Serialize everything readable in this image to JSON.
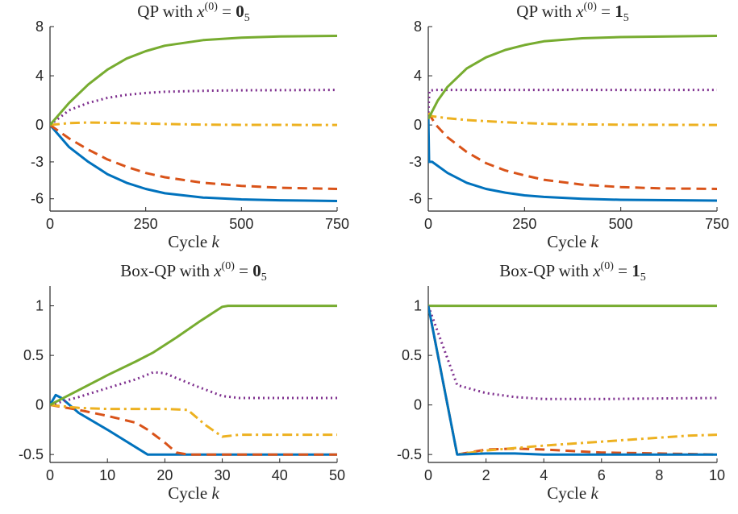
{
  "figure": {
    "colors": {
      "blue": "#0072bd",
      "orange": "#d95319",
      "yellow": "#edb120",
      "purple": "#7e2f8e",
      "green": "#77ac30",
      "axis": "#262626"
    }
  },
  "chart_data": [
    {
      "type": "line",
      "title": {
        "prefix": "QP with ",
        "var": "x",
        "sup": "(0)",
        "eq": " = ",
        "bold": "0",
        "sub": "5"
      },
      "xlabel": {
        "text": "Cycle ",
        "var": "k"
      },
      "xlim": [
        0,
        750
      ],
      "ylim": [
        -7,
        8
      ],
      "xticks": [
        0,
        250,
        500,
        750
      ],
      "yticks": [
        -6,
        -3,
        0,
        4,
        8
      ],
      "xtick_labels": [
        "0",
        "250",
        "500",
        "750"
      ],
      "ytick_labels": [
        "-6",
        "-3",
        "0",
        "4",
        "8"
      ],
      "grid": false,
      "series": [
        {
          "color": "#0072bd",
          "style": "solid",
          "points": [
            [
              0,
              0
            ],
            [
              50,
              -1.8
            ],
            [
              100,
              -3.0
            ],
            [
              150,
              -4.0
            ],
            [
              200,
              -4.7
            ],
            [
              250,
              -5.2
            ],
            [
              300,
              -5.55
            ],
            [
              400,
              -5.9
            ],
            [
              500,
              -6.05
            ],
            [
              600,
              -6.12
            ],
            [
              750,
              -6.18
            ]
          ]
        },
        {
          "color": "#d95319",
          "style": "dashed",
          "points": [
            [
              0,
              0
            ],
            [
              50,
              -1.1
            ],
            [
              100,
              -2.0
            ],
            [
              150,
              -2.8
            ],
            [
              200,
              -3.4
            ],
            [
              250,
              -3.9
            ],
            [
              300,
              -4.25
            ],
            [
              400,
              -4.7
            ],
            [
              500,
              -4.95
            ],
            [
              600,
              -5.1
            ],
            [
              750,
              -5.2
            ]
          ]
        },
        {
          "color": "#edb120",
          "style": "dashdot",
          "points": [
            [
              0,
              0
            ],
            [
              50,
              0.15
            ],
            [
              100,
              0.2
            ],
            [
              200,
              0.15
            ],
            [
              300,
              0.08
            ],
            [
              400,
              0.03
            ],
            [
              500,
              0.01
            ],
            [
              750,
              0.0
            ]
          ]
        },
        {
          "color": "#7e2f8e",
          "style": "dotted",
          "points": [
            [
              0,
              0
            ],
            [
              50,
              1.2
            ],
            [
              100,
              1.8
            ],
            [
              150,
              2.2
            ],
            [
              200,
              2.45
            ],
            [
              250,
              2.6
            ],
            [
              300,
              2.7
            ],
            [
              400,
              2.78
            ],
            [
              500,
              2.82
            ],
            [
              750,
              2.85
            ]
          ]
        },
        {
          "color": "#77ac30",
          "style": "solid",
          "points": [
            [
              0,
              0
            ],
            [
              50,
              1.8
            ],
            [
              100,
              3.3
            ],
            [
              150,
              4.5
            ],
            [
              200,
              5.4
            ],
            [
              250,
              6.0
            ],
            [
              300,
              6.45
            ],
            [
              400,
              6.9
            ],
            [
              500,
              7.1
            ],
            [
              600,
              7.2
            ],
            [
              750,
              7.25
            ]
          ]
        }
      ]
    },
    {
      "type": "line",
      "title": {
        "prefix": "QP with ",
        "var": "x",
        "sup": "(0)",
        "eq": " = ",
        "bold": "1",
        "sub": "5"
      },
      "xlabel": {
        "text": "Cycle ",
        "var": "k"
      },
      "xlim": [
        0,
        750
      ],
      "ylim": [
        -7,
        8
      ],
      "xticks": [
        0,
        250,
        500,
        750
      ],
      "yticks": [
        -6,
        -3,
        0,
        4,
        8
      ],
      "xtick_labels": [
        "0",
        "250",
        "500",
        "750"
      ],
      "ytick_labels": [
        "-6",
        "-3",
        "0",
        "4",
        "8"
      ],
      "grid": false,
      "series": [
        {
          "color": "#0072bd",
          "style": "solid",
          "points": [
            [
              0,
              1
            ],
            [
              2,
              -3.0
            ],
            [
              10,
              -3.0
            ],
            [
              50,
              -3.9
            ],
            [
              100,
              -4.7
            ],
            [
              150,
              -5.2
            ],
            [
              200,
              -5.5
            ],
            [
              250,
              -5.72
            ],
            [
              300,
              -5.85
            ],
            [
              400,
              -6.0
            ],
            [
              500,
              -6.08
            ],
            [
              750,
              -6.15
            ]
          ]
        },
        {
          "color": "#d95319",
          "style": "dashed",
          "points": [
            [
              0,
              1
            ],
            [
              20,
              0.0
            ],
            [
              50,
              -1.0
            ],
            [
              100,
              -2.2
            ],
            [
              150,
              -3.1
            ],
            [
              200,
              -3.7
            ],
            [
              250,
              -4.1
            ],
            [
              300,
              -4.45
            ],
            [
              400,
              -4.85
            ],
            [
              500,
              -5.05
            ],
            [
              600,
              -5.15
            ],
            [
              750,
              -5.2
            ]
          ]
        },
        {
          "color": "#edb120",
          "style": "dashdot",
          "points": [
            [
              0,
              1
            ],
            [
              10,
              0.7
            ],
            [
              50,
              0.55
            ],
            [
              100,
              0.4
            ],
            [
              200,
              0.22
            ],
            [
              300,
              0.1
            ],
            [
              400,
              0.05
            ],
            [
              500,
              0.02
            ],
            [
              750,
              0.0
            ]
          ]
        },
        {
          "color": "#7e2f8e",
          "style": "dotted",
          "points": [
            [
              0,
              1
            ],
            [
              3,
              2.8
            ],
            [
              20,
              2.85
            ],
            [
              100,
              2.85
            ],
            [
              300,
              2.85
            ],
            [
              750,
              2.85
            ]
          ]
        },
        {
          "color": "#77ac30",
          "style": "solid",
          "points": [
            [
              0,
              0.5
            ],
            [
              25,
              2.0
            ],
            [
              50,
              3.1
            ],
            [
              100,
              4.6
            ],
            [
              150,
              5.5
            ],
            [
              200,
              6.1
            ],
            [
              250,
              6.5
            ],
            [
              300,
              6.8
            ],
            [
              400,
              7.05
            ],
            [
              500,
              7.15
            ],
            [
              750,
              7.25
            ]
          ]
        }
      ]
    },
    {
      "type": "line",
      "title": {
        "prefix": "Box-QP with ",
        "var": "x",
        "sup": "(0)",
        "eq": " = ",
        "bold": "0",
        "sub": "5"
      },
      "xlabel": {
        "text": "Cycle ",
        "var": "k"
      },
      "xlim": [
        0,
        50
      ],
      "ylim": [
        -0.58,
        1.2
      ],
      "xticks": [
        0,
        10,
        20,
        30,
        40,
        50
      ],
      "yticks": [
        -0.5,
        0,
        0.5,
        1
      ],
      "xtick_labels": [
        "0",
        "10",
        "20",
        "30",
        "40",
        "50"
      ],
      "ytick_labels": [
        "-0.5",
        "0",
        "0.5",
        "1"
      ],
      "grid": false,
      "series": [
        {
          "color": "#0072bd",
          "style": "solid",
          "points": [
            [
              0,
              0
            ],
            [
              1,
              0.1
            ],
            [
              2,
              0.07
            ],
            [
              5,
              -0.08
            ],
            [
              10,
              -0.25
            ],
            [
              17,
              -0.5
            ],
            [
              20,
              -0.5
            ],
            [
              50,
              -0.5
            ]
          ]
        },
        {
          "color": "#d95319",
          "style": "dashed",
          "points": [
            [
              0,
              0
            ],
            [
              5,
              -0.05
            ],
            [
              10,
              -0.11
            ],
            [
              15,
              -0.18
            ],
            [
              17,
              -0.25
            ],
            [
              20,
              -0.38
            ],
            [
              22,
              -0.48
            ],
            [
              24,
              -0.5
            ],
            [
              50,
              -0.5
            ]
          ]
        },
        {
          "color": "#edb120",
          "style": "dashdot",
          "points": [
            [
              0,
              0
            ],
            [
              5,
              -0.03
            ],
            [
              10,
              -0.04
            ],
            [
              17,
              -0.04
            ],
            [
              20,
              -0.04
            ],
            [
              24,
              -0.05
            ],
            [
              27,
              -0.2
            ],
            [
              30,
              -0.32
            ],
            [
              33,
              -0.3
            ],
            [
              50,
              -0.3
            ]
          ]
        },
        {
          "color": "#7e2f8e",
          "style": "dotted",
          "points": [
            [
              0,
              0
            ],
            [
              5,
              0.08
            ],
            [
              10,
              0.17
            ],
            [
              15,
              0.26
            ],
            [
              18,
              0.33
            ],
            [
              20,
              0.32
            ],
            [
              25,
              0.2
            ],
            [
              30,
              0.09
            ],
            [
              33,
              0.07
            ],
            [
              50,
              0.07
            ]
          ]
        },
        {
          "color": "#77ac30",
          "style": "solid",
          "points": [
            [
              0,
              0
            ],
            [
              5,
              0.15
            ],
            [
              10,
              0.3
            ],
            [
              15,
              0.44
            ],
            [
              18,
              0.53
            ],
            [
              22,
              0.68
            ],
            [
              26,
              0.84
            ],
            [
              30,
              0.99
            ],
            [
              31,
              1.0
            ],
            [
              50,
              1.0
            ]
          ]
        }
      ]
    },
    {
      "type": "line",
      "title": {
        "prefix": "Box-QP with ",
        "var": "x",
        "sup": "(0)",
        "eq": " = ",
        "bold": "1",
        "sub": "5"
      },
      "xlabel": {
        "text": "Cycle ",
        "var": "k"
      },
      "xlim": [
        0,
        10
      ],
      "ylim": [
        -0.58,
        1.2
      ],
      "xticks": [
        0,
        2,
        4,
        6,
        8,
        10
      ],
      "yticks": [
        -0.5,
        0,
        0.5,
        1
      ],
      "xtick_labels": [
        "0",
        "2",
        "4",
        "6",
        "8",
        "10"
      ],
      "ytick_labels": [
        "-0.5",
        "0",
        "0.5",
        "1"
      ],
      "grid": false,
      "series": [
        {
          "color": "#77ac30",
          "style": "solid",
          "points": [
            [
              0,
              1
            ],
            [
              10,
              1
            ]
          ]
        },
        {
          "color": "#7e2f8e",
          "style": "dotted",
          "points": [
            [
              0,
              1
            ],
            [
              1,
              0.2
            ],
            [
              2,
              0.12
            ],
            [
              3,
              0.08
            ],
            [
              4,
              0.06
            ],
            [
              6,
              0.06
            ],
            [
              8,
              0.065
            ],
            [
              10,
              0.07
            ]
          ]
        },
        {
          "color": "#d95319",
          "style": "dashed",
          "points": [
            [
              0,
              1
            ],
            [
              1,
              -0.5
            ],
            [
              2,
              -0.45
            ],
            [
              3,
              -0.44
            ],
            [
              4,
              -0.45
            ],
            [
              6,
              -0.48
            ],
            [
              8,
              -0.49
            ],
            [
              10,
              -0.5
            ]
          ]
        },
        {
          "color": "#edb120",
          "style": "dashdot",
          "points": [
            [
              0,
              1
            ],
            [
              1,
              -0.5
            ],
            [
              2,
              -0.46
            ],
            [
              4,
              -0.41
            ],
            [
              6,
              -0.37
            ],
            [
              8,
              -0.33
            ],
            [
              9,
              -0.31
            ],
            [
              10,
              -0.3
            ]
          ]
        },
        {
          "color": "#0072bd",
          "style": "solid",
          "points": [
            [
              0,
              1
            ],
            [
              1,
              -0.5
            ],
            [
              2,
              -0.49
            ],
            [
              3,
              -0.49
            ],
            [
              4,
              -0.5
            ],
            [
              6,
              -0.5
            ],
            [
              10,
              -0.5
            ]
          ]
        }
      ]
    }
  ]
}
